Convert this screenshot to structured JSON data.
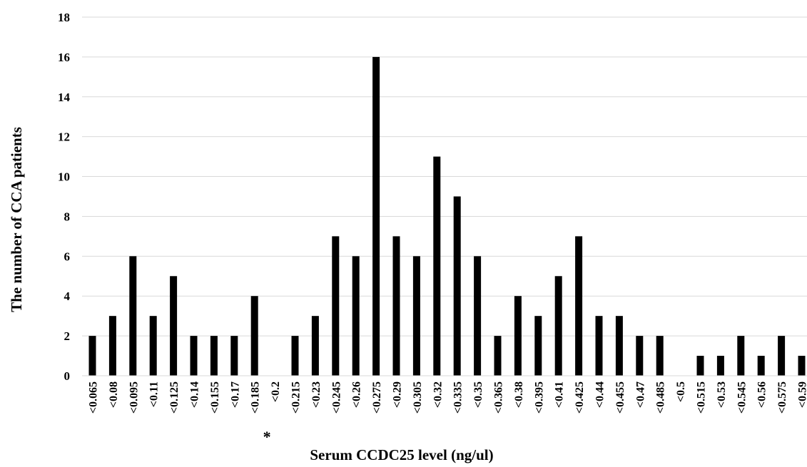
{
  "chart_data": {
    "type": "bar",
    "title": "",
    "xlabel": "Serum CCDC25 level (ng/ul)",
    "ylabel": "The number of CCA patients",
    "ylim": [
      0,
      18
    ],
    "yticks": [
      0,
      2,
      4,
      6,
      8,
      10,
      12,
      14,
      16,
      18
    ],
    "grid": true,
    "legend": "none",
    "bar_color": "#000000",
    "grid_color": "#d9d9d9",
    "categories": [
      "<0.065",
      "<0.08",
      "<0.095",
      "<0.11",
      "<0.125",
      "<0.14",
      "<0.155",
      "<0.17",
      "<0.185",
      "<0.2",
      "<0.215",
      "<0.23",
      "<0.245",
      "<0.26",
      "<0.275",
      "<0.29",
      "<0.305",
      "<0.32",
      "<0.335",
      "<0.35",
      "<0.365",
      "<0.38",
      "<0.395",
      "<0.41",
      "<0.425",
      "<0.44",
      "<0.455",
      "<0.47",
      "<0.485",
      "<0.5",
      "<0.515",
      "<0.53",
      "<0.545",
      "<0.56",
      "<0.575",
      "<0.59"
    ],
    "values": [
      2,
      3,
      6,
      3,
      5,
      2,
      2,
      2,
      4,
      0,
      2,
      3,
      7,
      6,
      16,
      7,
      6,
      11,
      9,
      6,
      2,
      4,
      3,
      5,
      7,
      3,
      3,
      2,
      2,
      0,
      1,
      1,
      2,
      1,
      2,
      1
    ],
    "annotation": {
      "text": "*",
      "category": "<0.2"
    }
  }
}
